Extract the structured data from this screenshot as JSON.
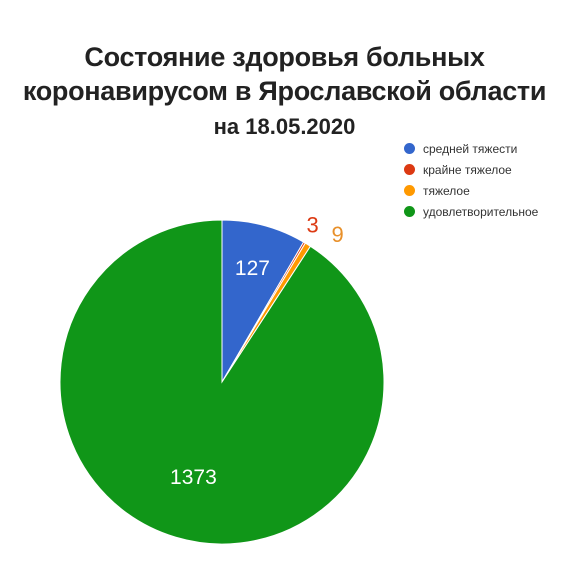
{
  "title": {
    "line1": "Состояние здоровья больных",
    "line2": "коронавирусом в Ярославской области",
    "line3": "на 18.05.2020"
  },
  "chart_data": {
    "type": "pie",
    "legend_position": "top-right",
    "slices": [
      {
        "label": "средней тяжести",
        "value": 127,
        "color": "#3366cc",
        "label_color": "#ffffff"
      },
      {
        "label": "крайне тяжелое",
        "value": 3,
        "color": "#dc3912",
        "label_color": "#dc3912"
      },
      {
        "label": "тяжелое",
        "value": 9,
        "color": "#ff9900",
        "label_color": "#e8902a"
      },
      {
        "label": "удовлетворительное",
        "value": 1373,
        "color": "#109618",
        "label_color": "#ffffff"
      }
    ]
  }
}
